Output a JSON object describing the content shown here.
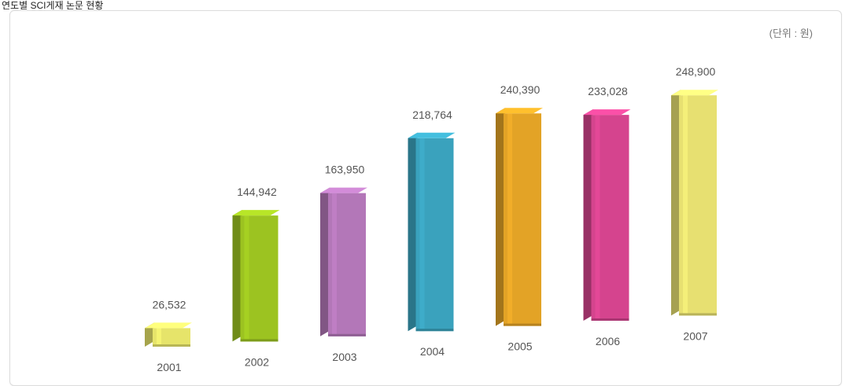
{
  "page": {
    "title": "연도별 SCI게재 논문 현황"
  },
  "chart_data": {
    "type": "bar",
    "title": "연도별 SCI게재 논문 현황",
    "unit_label": "(단위 : 원)",
    "categories": [
      "2001",
      "2002",
      "2003",
      "2004",
      "2005",
      "2006",
      "2007"
    ],
    "values": [
      26532,
      144942,
      163950,
      218764,
      240390,
      233028,
      248900
    ],
    "value_labels": [
      "26,532",
      "144,942",
      "163,950",
      "218,764",
      "240,390",
      "233,028",
      "248,900"
    ],
    "bar_colors": [
      "#e6e46a",
      "#9cc321",
      "#b377b8",
      "#3aa2bd",
      "#e3a326",
      "#d5448e",
      "#e7e071"
    ],
    "ylim": [
      0,
      260000
    ],
    "grid": false,
    "legend": "none"
  }
}
